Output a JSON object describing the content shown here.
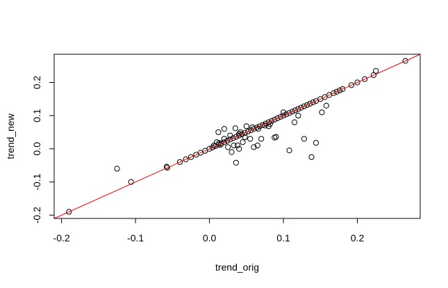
{
  "chart_data": {
    "type": "scatter",
    "title": "",
    "xlabel": "trend_orig",
    "ylabel": "trend_new",
    "xlim": [
      -0.21,
      0.285
    ],
    "ylim": [
      -0.21,
      0.285
    ],
    "x_ticks": [
      -0.2,
      -0.1,
      0.0,
      0.1,
      0.2
    ],
    "x_tick_labels": [
      "-0.2",
      "-0.1",
      "0.0",
      "0.1",
      "0.2"
    ],
    "y_ticks": [
      -0.2,
      -0.1,
      0.0,
      0.1,
      0.2
    ],
    "y_tick_labels": [
      "-0.2",
      "-0.1",
      "0.0",
      "0.1",
      "0.2"
    ],
    "grid": false,
    "legend": "none",
    "point_color": "#000000",
    "line_color": "#ff0000",
    "reference_line": {
      "intercept": 0,
      "slope": 1
    },
    "points": [
      [
        -0.19,
        -0.19
      ],
      [
        -0.125,
        -0.06
      ],
      [
        -0.106,
        -0.1
      ],
      [
        -0.058,
        -0.054
      ],
      [
        -0.057,
        -0.057
      ],
      [
        -0.04,
        -0.04
      ],
      [
        -0.032,
        -0.032
      ],
      [
        -0.025,
        -0.025
      ],
      [
        -0.018,
        -0.018
      ],
      [
        -0.012,
        -0.012
      ],
      [
        -0.006,
        -0.006
      ],
      [
        0.0,
        0.0
      ],
      [
        0.004,
        0.004
      ],
      [
        0.008,
        0.008
      ],
      [
        0.012,
        0.012
      ],
      [
        0.016,
        0.016
      ],
      [
        0.02,
        0.02
      ],
      [
        0.024,
        0.024
      ],
      [
        0.028,
        0.028
      ],
      [
        0.032,
        0.032
      ],
      [
        0.036,
        0.036
      ],
      [
        0.04,
        0.04
      ],
      [
        0.044,
        0.044
      ],
      [
        0.048,
        0.048
      ],
      [
        0.052,
        0.052
      ],
      [
        0.056,
        0.056
      ],
      [
        0.06,
        0.06
      ],
      [
        0.064,
        0.064
      ],
      [
        0.068,
        0.068
      ],
      [
        0.072,
        0.072
      ],
      [
        0.076,
        0.076
      ],
      [
        0.08,
        0.08
      ],
      [
        0.084,
        0.084
      ],
      [
        0.088,
        0.088
      ],
      [
        0.092,
        0.092
      ],
      [
        0.096,
        0.096
      ],
      [
        0.1,
        0.1
      ],
      [
        0.104,
        0.104
      ],
      [
        0.108,
        0.108
      ],
      [
        0.112,
        0.112
      ],
      [
        0.116,
        0.116
      ],
      [
        0.12,
        0.12
      ],
      [
        0.124,
        0.124
      ],
      [
        0.128,
        0.128
      ],
      [
        0.132,
        0.132
      ],
      [
        0.136,
        0.136
      ],
      [
        0.14,
        0.14
      ],
      [
        0.144,
        0.144
      ],
      [
        0.15,
        0.15
      ],
      [
        0.156,
        0.156
      ],
      [
        0.162,
        0.162
      ],
      [
        0.168,
        0.168
      ],
      [
        0.172,
        0.172
      ],
      [
        0.176,
        0.176
      ],
      [
        0.18,
        0.18
      ],
      [
        0.192,
        0.192
      ],
      [
        0.2,
        0.2
      ],
      [
        0.21,
        0.21
      ],
      [
        0.222,
        0.222
      ],
      [
        0.225,
        0.235
      ],
      [
        0.265,
        0.265
      ],
      [
        0.012,
        0.05
      ],
      [
        0.02,
        0.06
      ],
      [
        0.035,
        0.062
      ],
      [
        0.04,
        0.045
      ],
      [
        0.05,
        0.068
      ],
      [
        0.01,
        0.02
      ],
      [
        0.013,
        0.017
      ],
      [
        0.015,
        0.012
      ],
      [
        0.03,
        -0.01
      ],
      [
        0.036,
        -0.042
      ],
      [
        0.038,
        0.01
      ],
      [
        0.04,
        0.0
      ],
      [
        0.045,
        0.02
      ],
      [
        0.055,
        0.03
      ],
      [
        0.06,
        0.005
      ],
      [
        0.065,
        0.01
      ],
      [
        0.07,
        0.03
      ],
      [
        0.075,
        0.07
      ],
      [
        0.08,
        0.068
      ],
      [
        0.088,
        0.034
      ],
      [
        0.09,
        0.036
      ],
      [
        0.1,
        0.11
      ],
      [
        0.108,
        -0.005
      ],
      [
        0.115,
        0.08
      ],
      [
        0.12,
        0.1
      ],
      [
        0.128,
        0.03
      ],
      [
        0.138,
        -0.025
      ],
      [
        0.144,
        0.018
      ],
      [
        0.152,
        0.11
      ],
      [
        0.158,
        0.13
      ],
      [
        0.025,
        0.005
      ],
      [
        0.033,
        0.01
      ],
      [
        0.042,
        0.05
      ],
      [
        0.048,
        0.035
      ],
      [
        0.058,
        0.065
      ],
      [
        0.02,
        0.03
      ],
      [
        0.028,
        0.04
      ],
      [
        0.006,
        0.01
      ],
      [
        0.066,
        0.06
      ],
      [
        0.082,
        0.075
      ]
    ]
  }
}
